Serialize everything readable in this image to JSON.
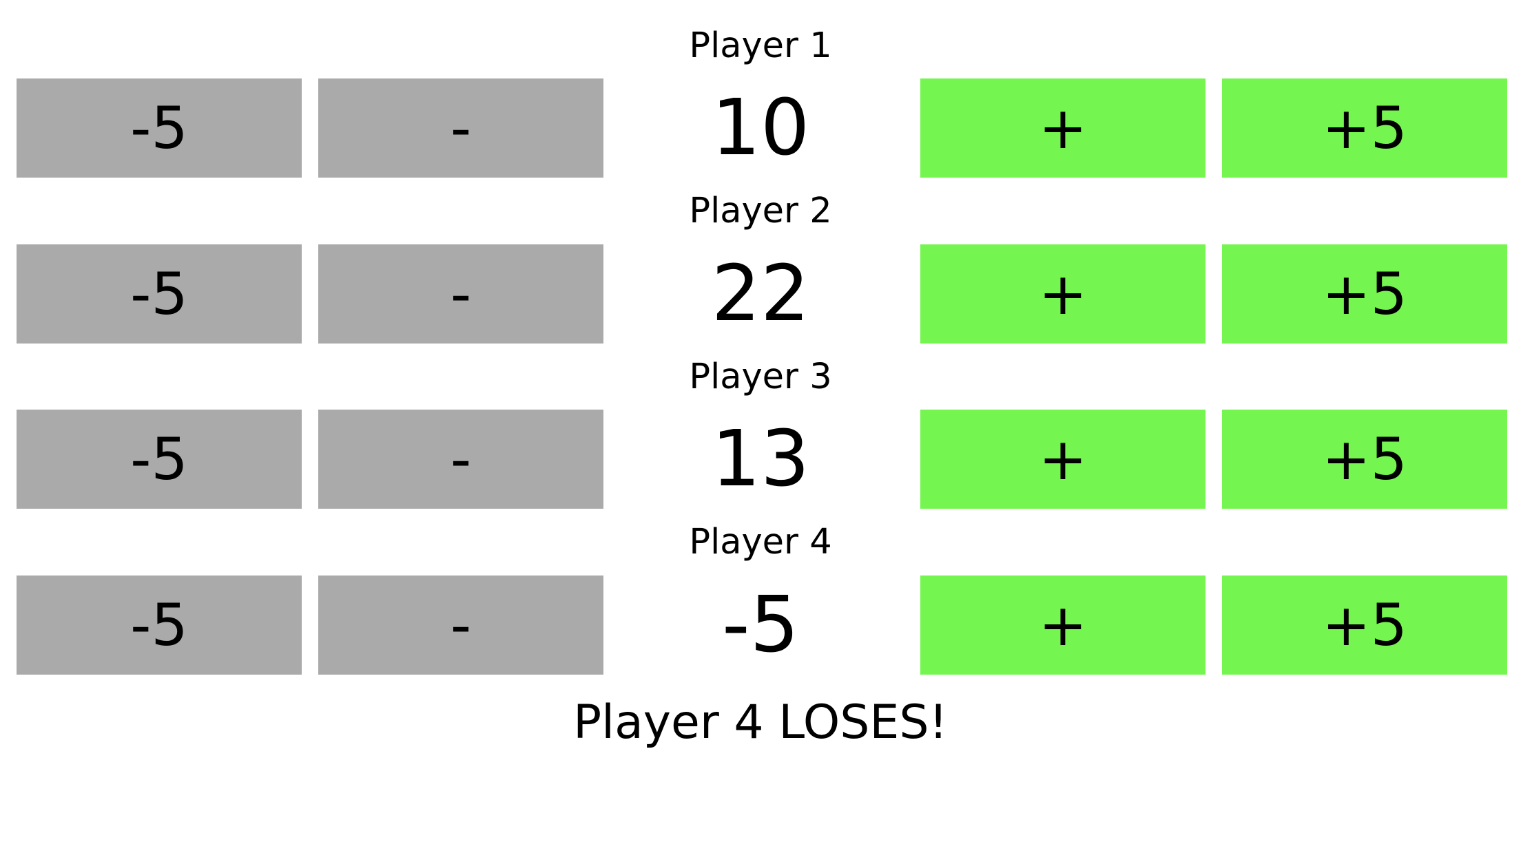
{
  "players": [
    {
      "label": "Player 1",
      "score": "10",
      "minus5": "-5",
      "minus": "-",
      "plus": "+",
      "plus5": "+5"
    },
    {
      "label": "Player 2",
      "score": "22",
      "minus5": "-5",
      "minus": "-",
      "plus": "+",
      "plus5": "+5"
    },
    {
      "label": "Player 3",
      "score": "13",
      "minus5": "-5",
      "minus": "-",
      "plus": "+",
      "plus5": "+5"
    },
    {
      "label": "Player 4",
      "score": "-5",
      "minus5": "-5",
      "minus": "-",
      "plus": "+",
      "plus5": "+5"
    }
  ],
  "status": "Player 4 LOSES!",
  "colors": {
    "decrement_button": "#aaaaaa",
    "increment_button": "#75f54f",
    "background": "#ffffff",
    "text": "#000000"
  }
}
